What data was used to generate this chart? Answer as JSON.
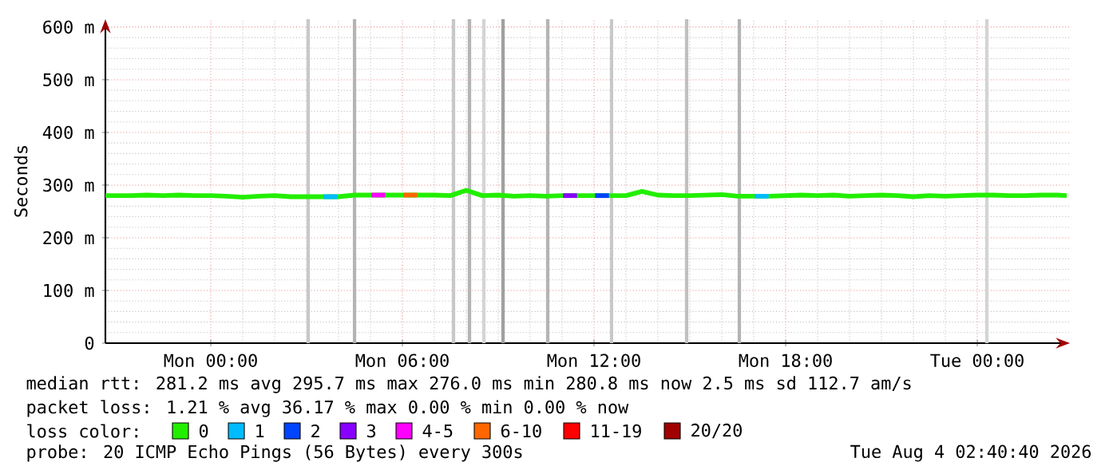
{
  "chart_data": {
    "type": "line",
    "ylabel": "Seconds",
    "xlim": [
      "2026-08-02T20:42",
      "2026-08-04T02:54"
    ],
    "xticks": [
      {
        "value": "2026-08-03T00:00",
        "label": "Mon 00:00"
      },
      {
        "value": "2026-08-03T06:00",
        "label": "Mon 06:00"
      },
      {
        "value": "2026-08-03T12:00",
        "label": "Mon 12:00"
      },
      {
        "value": "2026-08-03T18:00",
        "label": "Mon 18:00"
      },
      {
        "value": "2026-08-04T00:00",
        "label": "Tue 00:00"
      }
    ],
    "ylim": [
      0,
      615
    ],
    "yticks": [
      0,
      {
        "value": 100,
        "label": "100 m"
      },
      {
        "value": 200,
        "label": "200 m"
      },
      {
        "value": 300,
        "label": "300 m"
      },
      {
        "value": 400,
        "label": "400 m"
      },
      {
        "value": 500,
        "label": "500 m"
      },
      {
        "value": 600,
        "label": "600 m"
      }
    ],
    "grid": true,
    "legend": "bottom",
    "legend_title": "loss color:",
    "series": [
      {
        "name": "0",
        "color": "#22ee00",
        "x": [
          "2026-08-02T20:42",
          "2026-08-02T21:30",
          "2026-08-02T22:00",
          "2026-08-02T22:30",
          "2026-08-02T23:00",
          "2026-08-02T23:30",
          "2026-08-03T00:00",
          "2026-08-03T00:30",
          "2026-08-03T01:00",
          "2026-08-03T01:30",
          "2026-08-03T02:00",
          "2026-08-03T02:30",
          "2026-08-03T03:00",
          "2026-08-03T03:30",
          "2026-08-03T04:00",
          "2026-08-03T04:30",
          "2026-08-03T05:00",
          "2026-08-03T05:30",
          "2026-08-03T06:00",
          "2026-08-03T06:30",
          "2026-08-03T07:00",
          "2026-08-03T07:30",
          "2026-08-03T08:00",
          "2026-08-03T08:30",
          "2026-08-03T09:00",
          "2026-08-03T09:30",
          "2026-08-03T10:00",
          "2026-08-03T10:30",
          "2026-08-03T11:00",
          "2026-08-03T11:30",
          "2026-08-03T12:00",
          "2026-08-03T12:30",
          "2026-08-03T13:00",
          "2026-08-03T13:30",
          "2026-08-03T14:00",
          "2026-08-03T14:30",
          "2026-08-03T15:00",
          "2026-08-03T15:30",
          "2026-08-03T16:00",
          "2026-08-03T16:30",
          "2026-08-03T17:00",
          "2026-08-03T17:30",
          "2026-08-03T18:00",
          "2026-08-03T18:30",
          "2026-08-03T19:00",
          "2026-08-03T19:30",
          "2026-08-03T20:00",
          "2026-08-03T20:30",
          "2026-08-03T21:00",
          "2026-08-03T21:30",
          "2026-08-03T22:00",
          "2026-08-03T22:30",
          "2026-08-03T23:00",
          "2026-08-03T23:30",
          "2026-08-04T00:00",
          "2026-08-04T00:30",
          "2026-08-04T01:00",
          "2026-08-04T01:30",
          "2026-08-04T02:00",
          "2026-08-04T02:30",
          "2026-08-04T02:48"
        ],
        "values": [
          280,
          280,
          281,
          280,
          281,
          280,
          280,
          279,
          277,
          279,
          280,
          278,
          278,
          278,
          278,
          281,
          281,
          281,
          281,
          281,
          281,
          280,
          290,
          280,
          281,
          279,
          280,
          279,
          280,
          280,
          280,
          280,
          280,
          288,
          281,
          280,
          280,
          281,
          282,
          279,
          279,
          279,
          280,
          281,
          280,
          281,
          279,
          280,
          281,
          280,
          278,
          280,
          279,
          280,
          281,
          281,
          280,
          280,
          281,
          281,
          280
        ]
      },
      {
        "name": "1",
        "color": "#00bbff",
        "x": [
          "2026-08-03T03:32",
          "2026-08-03T03:58",
          "2026-08-03T03:59",
          "2026-08-03T17:02",
          "2026-08-03T17:28"
        ],
        "values": [
          278,
          278,
          null,
          279,
          279
        ]
      },
      {
        "name": "2",
        "color": "#0044ff",
        "x": [
          "2026-08-03T12:02",
          "2026-08-03T12:28"
        ],
        "values": [
          280,
          280
        ]
      },
      {
        "name": "3",
        "color": "#8800ff",
        "x": [
          "2026-08-03T11:02",
          "2026-08-03T11:28"
        ],
        "values": [
          280,
          280
        ]
      },
      {
        "name": "4-5",
        "color": "#ff00ff",
        "x": [
          "2026-08-03T05:02",
          "2026-08-03T05:28"
        ],
        "values": [
          281,
          281
        ]
      },
      {
        "name": "6-10",
        "color": "#ff6600",
        "x": [
          "2026-08-03T06:02",
          "2026-08-03T06:28"
        ],
        "values": [
          281,
          281
        ]
      },
      {
        "name": "11-19",
        "color": "#ff0000"
      },
      {
        "name": "20/20",
        "color": "#a00000"
      }
    ],
    "ref_lines": [
      {
        "axis": "x",
        "value": "2026-08-03T03:03",
        "color": "#c8c8c8"
      },
      {
        "axis": "x",
        "value": "2026-08-03T04:30",
        "color": "#b4b4b4"
      },
      {
        "axis": "x",
        "value": "2026-08-03T07:36",
        "color": "#c8c8c8"
      },
      {
        "axis": "x",
        "value": "2026-08-03T08:06",
        "color": "#b4b4b4"
      },
      {
        "axis": "x",
        "value": "2026-08-03T08:33",
        "color": "#d4d4d4"
      },
      {
        "axis": "x",
        "value": "2026-08-03T09:09",
        "color": "#a0a0a0"
      },
      {
        "axis": "x",
        "value": "2026-08-03T10:33",
        "color": "#b4b4b4"
      },
      {
        "axis": "x",
        "value": "2026-08-03T12:33",
        "color": "#c8c8c8"
      },
      {
        "axis": "x",
        "value": "2026-08-03T14:54",
        "color": "#c0c0c0"
      },
      {
        "axis": "x",
        "value": "2026-08-03T16:33",
        "color": "#b4b4b4"
      },
      {
        "axis": "x",
        "value": "2026-08-04T00:18",
        "color": "#d4d4d4"
      }
    ],
    "annotations": [
      "median rtt:  281.2 ms avg  295.7 ms max  276.0 ms min  280.8 ms now  2.5 ms sd  112.7   am/s",
      "packet loss: 1.21 % avg  36.17 % max  0.00 % min  0.00 % now",
      "probe:       20 ICMP Echo Pings (56 Bytes) every 300s",
      "Tue Aug  4 02:40:40 2026"
    ]
  }
}
